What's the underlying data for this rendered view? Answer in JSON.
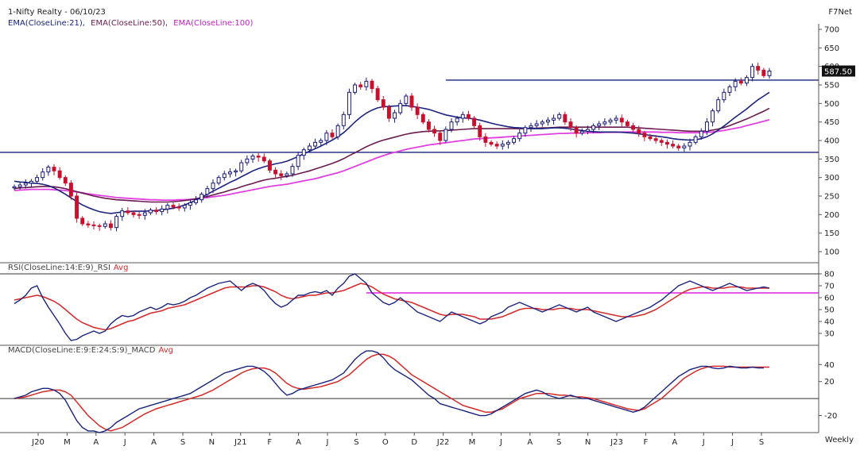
{
  "header": {
    "title": "1-Nifty Realty - 06/10/23",
    "vendor": "F7Net",
    "frequency": "Weekly"
  },
  "legend": {
    "ema21": "EMA(CloseLine:21),",
    "ema50": "EMA(CloseLine:50),",
    "ema100": "EMA(CloseLine:100)"
  },
  "rsi_legend": {
    "main": "RSI(CloseLine:14:E:9)_RSI",
    "avg": "Avg"
  },
  "macd_legend": {
    "main": "MACD(CloseLine:E:9:E:24:S:9)_MACD",
    "avg": "Avg"
  },
  "colors": {
    "up_candle": "#1a1a7a",
    "down_candle": "#c8102e",
    "ema21": "#1a237e",
    "ema50": "#6a1b4d",
    "ema100": "#e040e0",
    "rsi": "#1a237e",
    "avg": "#d42a2a",
    "support_line": "#1a237e",
    "rsi_level": "#e020e0",
    "last_price_bg": "#111111"
  },
  "chart_data": [
    {
      "type": "candlestick",
      "panel": "price",
      "x_ticks": [
        "J20",
        "M",
        "A",
        "J",
        "A",
        "S",
        "N",
        "J21",
        "F",
        "A",
        "J",
        "S",
        "O",
        "D",
        "J22",
        "M",
        "J",
        "A",
        "S",
        "N",
        "J23",
        "F",
        "A",
        "J",
        "J",
        "S"
      ],
      "y_ticks": [
        100,
        150,
        200,
        250,
        300,
        350,
        400,
        450,
        500,
        550,
        600,
        650,
        700
      ],
      "ylim": [
        70,
        715
      ],
      "last_price": "587.50",
      "horizontal_levels": [
        368,
        563
      ],
      "close": [
        275,
        280,
        285,
        290,
        300,
        315,
        328,
        318,
        300,
        285,
        250,
        190,
        175,
        172,
        170,
        168,
        175,
        165,
        195,
        210,
        205,
        200,
        198,
        205,
        212,
        208,
        215,
        225,
        220,
        218,
        225,
        232,
        240,
        255,
        270,
        285,
        300,
        310,
        315,
        318,
        340,
        350,
        358,
        355,
        345,
        320,
        310,
        305,
        310,
        330,
        360,
        375,
        385,
        395,
        400,
        420,
        410,
        440,
        470,
        530,
        550,
        545,
        560,
        540,
        510,
        490,
        460,
        475,
        500,
        520,
        490,
        470,
        450,
        430,
        420,
        400,
        430,
        450,
        460,
        470,
        460,
        440,
        410,
        395,
        390,
        385,
        390,
        395,
        405,
        420,
        435,
        440,
        445,
        450,
        455,
        460,
        470,
        450,
        435,
        420,
        425,
        430,
        440,
        445,
        450,
        455,
        460,
        450,
        440,
        430,
        420,
        410,
        405,
        400,
        395,
        390,
        385,
        380,
        385,
        395,
        410,
        425,
        450,
        480,
        510,
        530,
        545,
        560,
        555,
        570,
        600,
        590,
        575,
        587.5
      ],
      "ema21": [
        290,
        288,
        287,
        285,
        284,
        282,
        278,
        272,
        264,
        255,
        245,
        235,
        226,
        219,
        213,
        208,
        205,
        203,
        205,
        207,
        208,
        209,
        209,
        209,
        210,
        211,
        213,
        215,
        217,
        221,
        226,
        232,
        239,
        247,
        255,
        263,
        271,
        279,
        287,
        294,
        302,
        310,
        318,
        324,
        329,
        333,
        337,
        340,
        344,
        350,
        357,
        364,
        371,
        378,
        385,
        393,
        401,
        410,
        421,
        435,
        450,
        463,
        474,
        482,
        488,
        491,
        492,
        493,
        494,
        494,
        492,
        490,
        487,
        484,
        479,
        474,
        469,
        466,
        463,
        461,
        460,
        458,
        455,
        451,
        447,
        443,
        440,
        437,
        435,
        434,
        433,
        432,
        432,
        432,
        433,
        434,
        434,
        433,
        431,
        429,
        427,
        425,
        424,
        423,
        423,
        423,
        423,
        422,
        421,
        420,
        418,
        416,
        414,
        412,
        410,
        408,
        405,
        403,
        402,
        401,
        402,
        405,
        410,
        418,
        428,
        439,
        451,
        463,
        474,
        485,
        498,
        510,
        520,
        530
      ],
      "ema50": [
        270,
        272,
        273,
        274,
        275,
        276,
        276,
        275,
        273,
        270,
        266,
        262,
        258,
        254,
        250,
        247,
        244,
        242,
        240,
        239,
        238,
        237,
        236,
        235,
        234,
        234,
        234,
        234,
        235,
        236,
        238,
        240,
        243,
        246,
        249,
        253,
        257,
        261,
        266,
        270,
        275,
        280,
        284,
        289,
        293,
        296,
        298,
        301,
        303,
        306,
        310,
        314,
        318,
        323,
        328,
        333,
        338,
        344,
        351,
        359,
        367,
        375,
        383,
        390,
        396,
        401,
        405,
        409,
        413,
        417,
        420,
        422,
        424,
        425,
        426,
        426,
        427,
        428,
        429,
        430,
        431,
        432,
        432,
        432,
        432,
        432,
        432,
        432,
        432,
        432,
        432,
        433,
        433,
        434,
        434,
        435,
        436,
        436,
        436,
        436,
        436,
        436,
        436,
        436,
        436,
        436,
        436,
        436,
        436,
        435,
        434,
        433,
        432,
        431,
        430,
        429,
        428,
        427,
        426,
        425,
        425,
        425,
        426,
        428,
        431,
        435,
        440,
        446,
        452,
        458,
        465,
        472,
        479,
        487
      ],
      "ema100": [
        265,
        266,
        267,
        268,
        268,
        268,
        268,
        267,
        266,
        265,
        263,
        261,
        259,
        256,
        254,
        252,
        250,
        248,
        246,
        245,
        244,
        243,
        242,
        241,
        240,
        240,
        239,
        239,
        239,
        240,
        240,
        241,
        242,
        244,
        246,
        248,
        250,
        252,
        255,
        258,
        261,
        264,
        267,
        270,
        273,
        276,
        278,
        280,
        282,
        285,
        288,
        291,
        294,
        297,
        301,
        305,
        309,
        313,
        318,
        324,
        330,
        336,
        342,
        348,
        354,
        359,
        364,
        368,
        372,
        376,
        379,
        382,
        385,
        388,
        390,
        392,
        394,
        396,
        398,
        400,
        402,
        404,
        405,
        406,
        407,
        408,
        409,
        410,
        411,
        412,
        413,
        414,
        415,
        416,
        417,
        418,
        419,
        419,
        420,
        420,
        420,
        421,
        421,
        421,
        422,
        422,
        422,
        423,
        423,
        423,
        423,
        423,
        423,
        423,
        422,
        422,
        422,
        421,
        421,
        421,
        421,
        421,
        422,
        423,
        425,
        427,
        430,
        433,
        436,
        440,
        444,
        448,
        452,
        456
      ]
    },
    {
      "type": "line",
      "panel": "rsi",
      "title": "RSI(CloseLine:14:E:9)_RSI",
      "y_ticks": [
        30,
        40,
        50,
        60,
        70,
        80
      ],
      "ylim": [
        20,
        86
      ],
      "levels": [
        80,
        64
      ],
      "series": [
        {
          "name": "RSI",
          "values": [
            55,
            58,
            62,
            68,
            70,
            60,
            52,
            45,
            38,
            30,
            24,
            25,
            28,
            30,
            32,
            30,
            32,
            38,
            42,
            45,
            44,
            45,
            48,
            50,
            52,
            50,
            52,
            55,
            54,
            55,
            57,
            60,
            62,
            65,
            68,
            70,
            72,
            73,
            74,
            70,
            66,
            70,
            72,
            70,
            66,
            60,
            55,
            52,
            54,
            58,
            62,
            62,
            64,
            65,
            64,
            66,
            62,
            68,
            72,
            78,
            80,
            76,
            72,
            64,
            60,
            56,
            54,
            56,
            60,
            56,
            52,
            48,
            46,
            44,
            42,
            40,
            44,
            48,
            46,
            44,
            42,
            40,
            38,
            40,
            44,
            46,
            48,
            52,
            54,
            56,
            54,
            52,
            50,
            48,
            50,
            52,
            54,
            52,
            50,
            48,
            50,
            52,
            48,
            46,
            44,
            42,
            40,
            42,
            44,
            46,
            48,
            50,
            52,
            55,
            58,
            62,
            66,
            70,
            72,
            74,
            72,
            70,
            68,
            66,
            68,
            70,
            72,
            70,
            68,
            66,
            67,
            68,
            69,
            68
          ]
        },
        {
          "name": "Avg",
          "values": [
            58,
            59,
            60,
            61,
            62,
            61,
            59,
            57,
            54,
            50,
            46,
            42,
            39,
            37,
            35,
            34,
            33,
            34,
            36,
            38,
            40,
            41,
            43,
            45,
            47,
            48,
            49,
            51,
            52,
            53,
            54,
            56,
            58,
            60,
            62,
            64,
            66,
            68,
            69,
            69,
            69,
            69,
            70,
            70,
            69,
            67,
            65,
            62,
            60,
            59,
            60,
            61,
            62,
            62,
            63,
            64,
            64,
            65,
            66,
            68,
            70,
            72,
            71,
            69,
            66,
            63,
            61,
            59,
            58,
            57,
            56,
            54,
            52,
            50,
            48,
            46,
            45,
            46,
            46,
            46,
            45,
            44,
            42,
            42,
            42,
            43,
            44,
            46,
            48,
            50,
            51,
            51,
            51,
            50,
            50,
            50,
            51,
            51,
            51,
            50,
            50,
            50,
            49,
            48,
            47,
            46,
            45,
            44,
            44,
            44,
            45,
            46,
            48,
            50,
            53,
            56,
            59,
            62,
            65,
            67,
            68,
            69,
            69,
            68,
            68,
            68,
            69,
            69,
            69,
            68,
            68,
            68,
            68,
            68
          ]
        }
      ]
    },
    {
      "type": "line",
      "panel": "macd",
      "title": "MACD(CloseLine:E:9:E:24:S:9)_MACD",
      "y_ticks": [
        -20,
        20,
        40
      ],
      "ylim": [
        -40,
        58
      ],
      "levels": [
        0
      ],
      "series": [
        {
          "name": "MACD",
          "values": [
            0,
            2,
            4,
            8,
            10,
            12,
            12,
            10,
            6,
            -2,
            -14,
            -26,
            -34,
            -38,
            -38,
            -40,
            -38,
            -34,
            -28,
            -24,
            -20,
            -16,
            -12,
            -10,
            -8,
            -6,
            -4,
            -2,
            0,
            2,
            4,
            6,
            10,
            14,
            18,
            22,
            26,
            30,
            32,
            34,
            36,
            38,
            38,
            36,
            32,
            26,
            18,
            10,
            4,
            6,
            10,
            12,
            14,
            16,
            18,
            20,
            22,
            26,
            30,
            38,
            46,
            52,
            56,
            56,
            54,
            48,
            40,
            34,
            30,
            26,
            22,
            16,
            10,
            4,
            0,
            -6,
            -8,
            -10,
            -12,
            -14,
            -16,
            -18,
            -20,
            -20,
            -18,
            -14,
            -10,
            -6,
            -2,
            2,
            6,
            8,
            10,
            8,
            4,
            2,
            0,
            2,
            4,
            2,
            0,
            0,
            -2,
            -4,
            -6,
            -8,
            -10,
            -12,
            -14,
            -16,
            -14,
            -10,
            -4,
            2,
            8,
            14,
            20,
            26,
            30,
            34,
            36,
            38,
            38,
            36,
            35,
            36,
            38,
            37,
            36,
            36,
            37,
            36,
            36
          ]
        },
        {
          "name": "Avg",
          "values": [
            0,
            1,
            2,
            4,
            6,
            8,
            9,
            10,
            10,
            8,
            4,
            -4,
            -12,
            -20,
            -26,
            -32,
            -36,
            -38,
            -36,
            -34,
            -30,
            -26,
            -22,
            -18,
            -15,
            -12,
            -10,
            -8,
            -6,
            -4,
            -2,
            0,
            2,
            4,
            7,
            10,
            14,
            18,
            22,
            26,
            30,
            33,
            35,
            36,
            36,
            34,
            30,
            24,
            18,
            14,
            12,
            11,
            12,
            13,
            14,
            16,
            18,
            20,
            24,
            28,
            34,
            40,
            46,
            50,
            52,
            52,
            50,
            46,
            40,
            34,
            28,
            24,
            20,
            16,
            12,
            8,
            4,
            0,
            -4,
            -8,
            -10,
            -12,
            -14,
            -16,
            -16,
            -14,
            -12,
            -8,
            -4,
            0,
            2,
            4,
            6,
            6,
            6,
            5,
            4,
            4,
            3,
            2,
            2,
            1,
            0,
            -2,
            -4,
            -6,
            -8,
            -10,
            -12,
            -13,
            -14,
            -12,
            -8,
            -4,
            0,
            6,
            12,
            18,
            24,
            28,
            32,
            35,
            37,
            38,
            38,
            38,
            37,
            37,
            37,
            37,
            37,
            37,
            37,
            37
          ]
        }
      ]
    }
  ]
}
